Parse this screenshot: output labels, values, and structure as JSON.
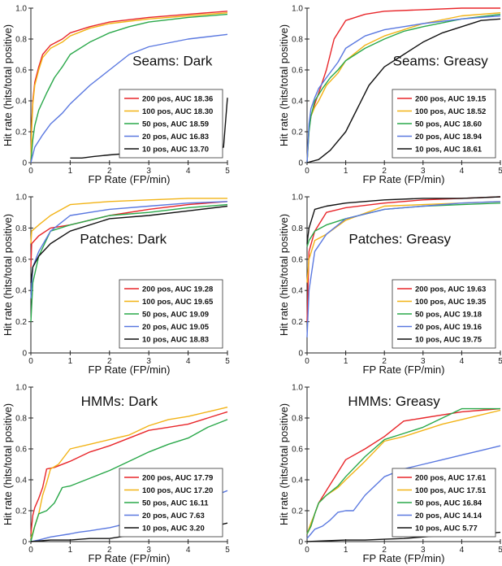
{
  "figure": {
    "ylabel": "Hit rate (hits/total positive)",
    "xlabel": "FP Rate (FP/min)",
    "ytick_labels": [
      "0",
      "0.2",
      "0.4",
      "0.6",
      "0.8",
      "1.0"
    ],
    "xtick_labels": [
      "0",
      "1",
      "2",
      "3",
      "4",
      "5"
    ]
  },
  "colors": {
    "200 pos": "#e8262a",
    "100 pos": "#f2b316",
    "50 pos": "#2aa84a",
    "20 pos": "#5a78e0",
    "10 pos": "#111111"
  },
  "chart_data": [
    {
      "type": "line",
      "title": "Seams: Dark",
      "xlabel": "FP Rate (FP/min)",
      "ylabel": "Hit rate (hits/total positive)",
      "xlim": [
        0,
        5
      ],
      "ylim": [
        0,
        1
      ],
      "legend_position": "bottom-right",
      "series": [
        {
          "name": "200 pos, AUC 18.36",
          "key": "200 pos",
          "legend_bold": true,
          "x": [
            0,
            0.02,
            0.05,
            0.1,
            0.2,
            0.3,
            0.5,
            0.8,
            1.0,
            1.5,
            2.0,
            3.0,
            4.0,
            5.0
          ],
          "y": [
            0,
            0.25,
            0.4,
            0.52,
            0.62,
            0.7,
            0.76,
            0.8,
            0.84,
            0.88,
            0.91,
            0.94,
            0.96,
            0.98
          ]
        },
        {
          "name": "100 pos, AUC 18.30",
          "key": "100 pos",
          "x": [
            0,
            0.02,
            0.05,
            0.1,
            0.2,
            0.3,
            0.5,
            0.8,
            1.0,
            1.5,
            2.0,
            3.0,
            4.0,
            5.0
          ],
          "y": [
            0,
            0.22,
            0.38,
            0.5,
            0.6,
            0.68,
            0.74,
            0.78,
            0.82,
            0.87,
            0.9,
            0.93,
            0.95,
            0.97
          ]
        },
        {
          "name": "50 pos, AUC 18.59",
          "key": "50 pos",
          "x": [
            0,
            0.05,
            0.1,
            0.2,
            0.4,
            0.6,
            0.8,
            1.0,
            1.5,
            2.0,
            2.5,
            3.0,
            4.0,
            5.0
          ],
          "y": [
            0,
            0.15,
            0.24,
            0.34,
            0.45,
            0.55,
            0.62,
            0.7,
            0.78,
            0.84,
            0.88,
            0.91,
            0.94,
            0.96
          ]
        },
        {
          "name": "20 pos, AUC 16.83",
          "key": "20 pos",
          "x": [
            0,
            0.1,
            0.3,
            0.5,
            0.8,
            1.0,
            1.5,
            2.0,
            2.5,
            3.0,
            4.0,
            5.0
          ],
          "y": [
            0,
            0.1,
            0.18,
            0.25,
            0.32,
            0.38,
            0.5,
            0.6,
            0.7,
            0.75,
            0.8,
            0.83
          ]
        },
        {
          "name": "10 pos, AUC 13.70",
          "key": "10 pos",
          "x": [
            1.0,
            1.3,
            1.6,
            2.0,
            2.5,
            3.0,
            3.5,
            4.0,
            4.5,
            4.9,
            5.0
          ],
          "y": [
            0.03,
            0.03,
            0.04,
            0.05,
            0.06,
            0.07,
            0.08,
            0.08,
            0.09,
            0.1,
            0.42
          ]
        }
      ]
    },
    {
      "type": "line",
      "title": "Seams: Greasy",
      "xlabel": "FP Rate (FP/min)",
      "ylabel": "Hit rate (hits/total positive)",
      "xlim": [
        0,
        5
      ],
      "ylim": [
        0,
        1
      ],
      "legend_position": "bottom-right",
      "series": [
        {
          "name": "200 pos, AUC 19.15",
          "key": "200 pos",
          "legend_bold": true,
          "x": [
            0,
            0.05,
            0.1,
            0.2,
            0.3,
            0.5,
            0.7,
            1.0,
            1.5,
            2.0,
            3.0,
            4.0,
            5.0
          ],
          "y": [
            0,
            0.22,
            0.3,
            0.38,
            0.45,
            0.6,
            0.8,
            0.92,
            0.96,
            0.98,
            0.99,
            1.0,
            1.0
          ]
        },
        {
          "name": "100 pos, AUC 18.52",
          "key": "100 pos",
          "x": [
            0,
            0.05,
            0.1,
            0.2,
            0.3,
            0.5,
            0.8,
            1.0,
            1.5,
            2.0,
            3.0,
            4.0,
            5.0
          ],
          "y": [
            0,
            0.22,
            0.3,
            0.36,
            0.4,
            0.5,
            0.58,
            0.66,
            0.76,
            0.82,
            0.9,
            0.95,
            0.97
          ]
        },
        {
          "name": "50 pos, AUC 18.60",
          "key": "50 pos",
          "x": [
            0,
            0.05,
            0.1,
            0.2,
            0.4,
            0.6,
            0.8,
            1.0,
            1.5,
            2.0,
            2.5,
            3.0,
            4.0,
            5.0
          ],
          "y": [
            0,
            0.2,
            0.3,
            0.4,
            0.48,
            0.55,
            0.6,
            0.66,
            0.74,
            0.8,
            0.85,
            0.88,
            0.93,
            0.96
          ]
        },
        {
          "name": "20 pos, AUC 18.94",
          "key": "20 pos",
          "x": [
            0,
            0.05,
            0.1,
            0.2,
            0.3,
            0.5,
            0.8,
            1.0,
            1.5,
            2.0,
            2.5,
            3.0,
            4.0,
            5.0
          ],
          "y": [
            0,
            0.25,
            0.35,
            0.42,
            0.48,
            0.55,
            0.65,
            0.74,
            0.82,
            0.86,
            0.88,
            0.9,
            0.93,
            0.95
          ]
        },
        {
          "name": "10 pos, AUC 18.61",
          "key": "10 pos",
          "x": [
            0,
            0.3,
            0.6,
            1.0,
            1.3,
            1.6,
            2.0,
            2.5,
            3.0,
            3.5,
            4.0,
            4.5,
            5.0
          ],
          "y": [
            0,
            0.02,
            0.08,
            0.2,
            0.35,
            0.5,
            0.62,
            0.7,
            0.78,
            0.84,
            0.88,
            0.92,
            0.93
          ]
        }
      ]
    },
    {
      "type": "line",
      "title": "Patches: Dark",
      "xlabel": "FP Rate (FP/min)",
      "ylabel": "Hit rate (hits/total positive)",
      "xlim": [
        0,
        5
      ],
      "ylim": [
        0,
        1
      ],
      "legend_position": "bottom-right",
      "series": [
        {
          "name": "200 pos, AUC 19.28",
          "key": "200 pos",
          "legend_bold": true,
          "x": [
            0,
            0.02,
            0.2,
            0.5,
            1.0,
            2.0,
            3.0,
            4.0,
            5.0
          ],
          "y": [
            0.55,
            0.7,
            0.75,
            0.8,
            0.82,
            0.88,
            0.92,
            0.95,
            0.97
          ]
        },
        {
          "name": "100 pos, AUC 19.65",
          "key": "100 pos",
          "x": [
            0,
            0.02,
            0.2,
            0.5,
            1.0,
            2.0,
            3.0,
            4.0,
            5.0
          ],
          "y": [
            0.7,
            0.78,
            0.82,
            0.88,
            0.95,
            0.97,
            0.98,
            0.99,
            0.99
          ]
        },
        {
          "name": "50 pos, AUC 19.09",
          "key": "50 pos",
          "x": [
            0,
            0.05,
            0.2,
            0.5,
            1.0,
            2.0,
            3.0,
            4.0,
            5.0
          ],
          "y": [
            0.2,
            0.45,
            0.62,
            0.78,
            0.82,
            0.88,
            0.9,
            0.93,
            0.95
          ]
        },
        {
          "name": "20 pos, AUC 19.05",
          "key": "20 pos",
          "x": [
            0,
            0.05,
            0.2,
            0.5,
            1.0,
            2.0,
            3.0,
            4.0,
            5.0
          ],
          "y": [
            0.35,
            0.55,
            0.65,
            0.78,
            0.88,
            0.92,
            0.94,
            0.96,
            0.97
          ]
        },
        {
          "name": "10 pos, AUC 18.83",
          "key": "10 pos",
          "x": [
            0,
            0.05,
            0.2,
            0.5,
            1.0,
            2.0,
            3.0,
            4.0,
            5.0
          ],
          "y": [
            0.45,
            0.55,
            0.62,
            0.7,
            0.78,
            0.86,
            0.88,
            0.91,
            0.94
          ]
        }
      ]
    },
    {
      "type": "line",
      "title": "Patches: Greasy",
      "xlabel": "FP Rate (FP/min)",
      "ylabel": "Hit rate (hits/total positive)",
      "xlim": [
        0,
        5
      ],
      "ylim": [
        0,
        1
      ],
      "legend_position": "bottom-right",
      "series": [
        {
          "name": "200 pos, AUC 19.63",
          "key": "200 pos",
          "legend_bold": true,
          "x": [
            0,
            0.05,
            0.2,
            0.5,
            1.0,
            2.0,
            3.0,
            4.0,
            5.0
          ],
          "y": [
            0.2,
            0.65,
            0.78,
            0.9,
            0.93,
            0.96,
            0.98,
            0.99,
            1.0
          ]
        },
        {
          "name": "100 pos, AUC 19.35",
          "key": "100 pos",
          "x": [
            0,
            0.05,
            0.2,
            0.5,
            1.0,
            2.0,
            3.0,
            4.0,
            5.0
          ],
          "y": [
            0.45,
            0.6,
            0.72,
            0.76,
            0.85,
            0.94,
            0.95,
            0.96,
            0.97
          ]
        },
        {
          "name": "50 pos, AUC 19.18",
          "key": "50 pos",
          "x": [
            0,
            0.05,
            0.2,
            0.5,
            1.0,
            2.0,
            3.0,
            4.0,
            5.0
          ],
          "y": [
            0.68,
            0.72,
            0.78,
            0.82,
            0.86,
            0.92,
            0.94,
            0.95,
            0.96
          ]
        },
        {
          "name": "20 pos, AUC 19.16",
          "key": "20 pos",
          "x": [
            0,
            0.05,
            0.2,
            0.5,
            1.0,
            2.0,
            3.0,
            4.0,
            5.0
          ],
          "y": [
            0.1,
            0.4,
            0.65,
            0.76,
            0.86,
            0.92,
            0.94,
            0.96,
            0.97
          ]
        },
        {
          "name": "10 pos, AUC 19.75",
          "key": "10 pos",
          "x": [
            0,
            0.05,
            0.2,
            0.5,
            1.0,
            2.0,
            3.0,
            4.0,
            5.0
          ],
          "y": [
            0.7,
            0.8,
            0.92,
            0.94,
            0.96,
            0.98,
            0.99,
            0.99,
            1.0
          ]
        }
      ]
    },
    {
      "type": "line",
      "title": "HMMs: Dark",
      "xlabel": "FP Rate (FP/min)",
      "ylabel": "Hit rate (hits/total positive)",
      "xlim": [
        0,
        5
      ],
      "ylim": [
        0,
        1
      ],
      "legend_position": "bottom-right",
      "series": [
        {
          "name": "200 pos, AUC 17.79",
          "key": "200 pos",
          "legend_bold": true,
          "x": [
            0,
            0.05,
            0.1,
            0.2,
            0.3,
            0.4,
            0.6,
            1.0,
            1.5,
            2.0,
            2.5,
            3.0,
            3.5,
            4.0,
            4.5,
            5.0
          ],
          "y": [
            0.05,
            0.17,
            0.22,
            0.28,
            0.35,
            0.47,
            0.48,
            0.52,
            0.58,
            0.62,
            0.67,
            0.72,
            0.74,
            0.76,
            0.8,
            0.84
          ]
        },
        {
          "name": "100 pos, AUC 17.20",
          "key": "100 pos",
          "x": [
            0,
            0.1,
            0.2,
            0.3,
            0.4,
            0.5,
            0.7,
            1.0,
            1.5,
            2.0,
            2.5,
            3.0,
            3.5,
            4.0,
            4.5,
            5.0
          ],
          "y": [
            0.02,
            0.1,
            0.18,
            0.3,
            0.38,
            0.47,
            0.5,
            0.6,
            0.63,
            0.66,
            0.69,
            0.75,
            0.79,
            0.81,
            0.84,
            0.87
          ]
        },
        {
          "name": "50 pos, AUC 16.11",
          "key": "50 pos",
          "x": [
            0,
            0.1,
            0.2,
            0.4,
            0.6,
            0.8,
            1.0,
            1.5,
            2.0,
            2.5,
            3.0,
            3.5,
            4.0,
            4.5,
            5.0
          ],
          "y": [
            0,
            0.1,
            0.18,
            0.2,
            0.25,
            0.35,
            0.36,
            0.41,
            0.46,
            0.52,
            0.58,
            0.63,
            0.67,
            0.74,
            0.79
          ]
        },
        {
          "name": "20 pos, AUC  7.63",
          "key": "20 pos",
          "x": [
            0,
            0.2,
            0.5,
            1.0,
            1.2,
            1.5,
            2.0,
            2.5,
            3.0,
            3.5,
            4.0,
            4.5,
            5.0
          ],
          "y": [
            0,
            0.01,
            0.03,
            0.05,
            0.06,
            0.07,
            0.09,
            0.12,
            0.16,
            0.2,
            0.24,
            0.28,
            0.33
          ]
        },
        {
          "name": "10 pos, AUC  3.20",
          "key": "10 pos",
          "x": [
            0,
            0.5,
            1.0,
            1.5,
            2.0,
            2.5,
            3.0,
            3.5,
            4.0,
            4.5,
            5.0
          ],
          "y": [
            0,
            0.01,
            0.01,
            0.02,
            0.02,
            0.04,
            0.05,
            0.06,
            0.07,
            0.09,
            0.12
          ]
        }
      ]
    },
    {
      "type": "line",
      "title": "HMMs: Greasy",
      "xlabel": "FP Rate (FP/min)",
      "ylabel": "Hit rate (hits/total positive)",
      "xlim": [
        0,
        5
      ],
      "ylim": [
        0,
        1
      ],
      "legend_position": "bottom-right",
      "series": [
        {
          "name": "200 pos, AUC 17.61",
          "key": "200 pos",
          "legend_bold": true,
          "x": [
            0,
            0.1,
            0.2,
            0.3,
            0.5,
            0.8,
            1.0,
            1.5,
            2.0,
            2.5,
            3.0,
            3.5,
            4.0,
            4.5,
            5.0
          ],
          "y": [
            0.05,
            0.1,
            0.18,
            0.25,
            0.33,
            0.45,
            0.53,
            0.6,
            0.68,
            0.78,
            0.8,
            0.82,
            0.84,
            0.85,
            0.86
          ]
        },
        {
          "name": "100 pos, AUC 17.51",
          "key": "100 pos",
          "x": [
            0,
            0.1,
            0.2,
            0.3,
            0.5,
            0.8,
            1.0,
            1.5,
            2.0,
            2.5,
            3.0,
            3.5,
            4.0,
            4.5,
            5.0
          ],
          "y": [
            0.05,
            0.12,
            0.18,
            0.25,
            0.3,
            0.35,
            0.4,
            0.52,
            0.65,
            0.68,
            0.72,
            0.76,
            0.79,
            0.82,
            0.85
          ]
        },
        {
          "name": "50 pos, AUC 16.84",
          "key": "50 pos",
          "x": [
            0,
            0.1,
            0.2,
            0.3,
            0.5,
            0.8,
            1.0,
            1.5,
            2.0,
            2.5,
            3.0,
            3.5,
            4.0,
            4.5,
            5.0
          ],
          "y": [
            0.05,
            0.1,
            0.18,
            0.25,
            0.3,
            0.36,
            0.42,
            0.55,
            0.66,
            0.7,
            0.74,
            0.8,
            0.86,
            0.86,
            0.86
          ]
        },
        {
          "name": "20 pos, AUC 14.14",
          "key": "20 pos",
          "x": [
            0,
            0.1,
            0.2,
            0.4,
            0.6,
            0.8,
            1.0,
            1.2,
            1.5,
            2.0,
            2.5,
            3.0,
            3.5,
            4.0,
            4.5,
            5.0
          ],
          "y": [
            0.02,
            0.05,
            0.08,
            0.1,
            0.14,
            0.19,
            0.2,
            0.2,
            0.3,
            0.42,
            0.47,
            0.5,
            0.53,
            0.56,
            0.59,
            0.62
          ]
        },
        {
          "name": "10 pos, AUC   5.77",
          "key": "10 pos",
          "x": [
            0,
            0.5,
            1.0,
            1.5,
            2.0,
            2.5,
            3.0,
            3.5,
            4.0,
            4.5,
            5.0
          ],
          "y": [
            0,
            0.005,
            0.01,
            0.01,
            0.015,
            0.02,
            0.03,
            0.04,
            0.05,
            0.05,
            0.06
          ]
        }
      ]
    }
  ]
}
